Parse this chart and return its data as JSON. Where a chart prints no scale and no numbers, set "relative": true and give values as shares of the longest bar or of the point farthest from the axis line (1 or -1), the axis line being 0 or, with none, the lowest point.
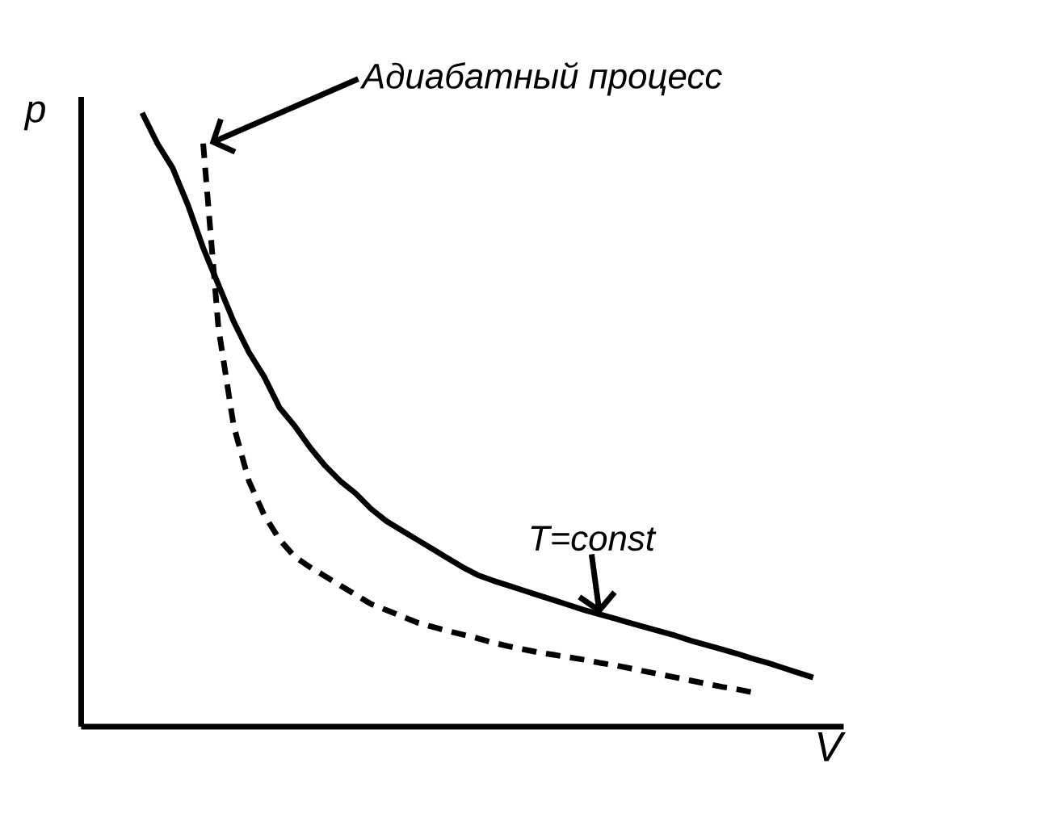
{
  "chart_data": {
    "type": "line",
    "relative": true,
    "xlabel": "V",
    "ylabel": "p",
    "categories": [
      null,
      null,
      null,
      null,
      null,
      null,
      null,
      null,
      null,
      null,
      null,
      null,
      null,
      null,
      null,
      null,
      null,
      null,
      null,
      null,
      null,
      null,
      null,
      null,
      null,
      null,
      null,
      null,
      null,
      null,
      null,
      null,
      null,
      null,
      null,
      null,
      null,
      null,
      null,
      null,
      null,
      null,
      null,
      null,
      null
    ],
    "series": [
      {
        "color": "#000000",
        "line_style": "solid",
        "values": [
          1.0,
          0.95,
          0.91,
          0.85,
          0.78,
          0.72,
          0.66,
          0.61,
          0.57,
          0.52,
          0.49,
          0.455,
          0.425,
          0.4,
          0.38,
          0.355,
          0.335,
          0.32,
          0.305,
          0.29,
          0.275,
          0.26,
          0.247,
          0.238,
          0.23,
          0.222,
          0.214,
          0.206,
          0.198,
          0.19,
          0.183,
          0.176,
          0.169,
          0.162,
          0.155,
          0.148,
          0.14,
          0.133,
          0.126,
          0.119,
          0.111,
          0.104,
          0.096,
          0.088,
          0.08
        ]
      },
      {
        "color": "#000000",
        "line_style": "dashed",
        "values": [
          null,
          null,
          null,
          null,
          0.95,
          0.65,
          0.49,
          0.4,
          0.345,
          0.305,
          0.277,
          0.26,
          0.245,
          0.23,
          0.215,
          0.2,
          0.19,
          0.18,
          0.17,
          0.163,
          0.156,
          0.15,
          0.144,
          0.137,
          0.131,
          0.126,
          0.121,
          0.117,
          0.113,
          0.109,
          0.104,
          0.1,
          0.095,
          0.09,
          0.085,
          0.08,
          0.075,
          0.07,
          0.065,
          0.061,
          0.056,
          null,
          null,
          null,
          null
        ]
      }
    ],
    "annotations": [
      "Адиабатный процесс",
      "T=const"
    ]
  }
}
